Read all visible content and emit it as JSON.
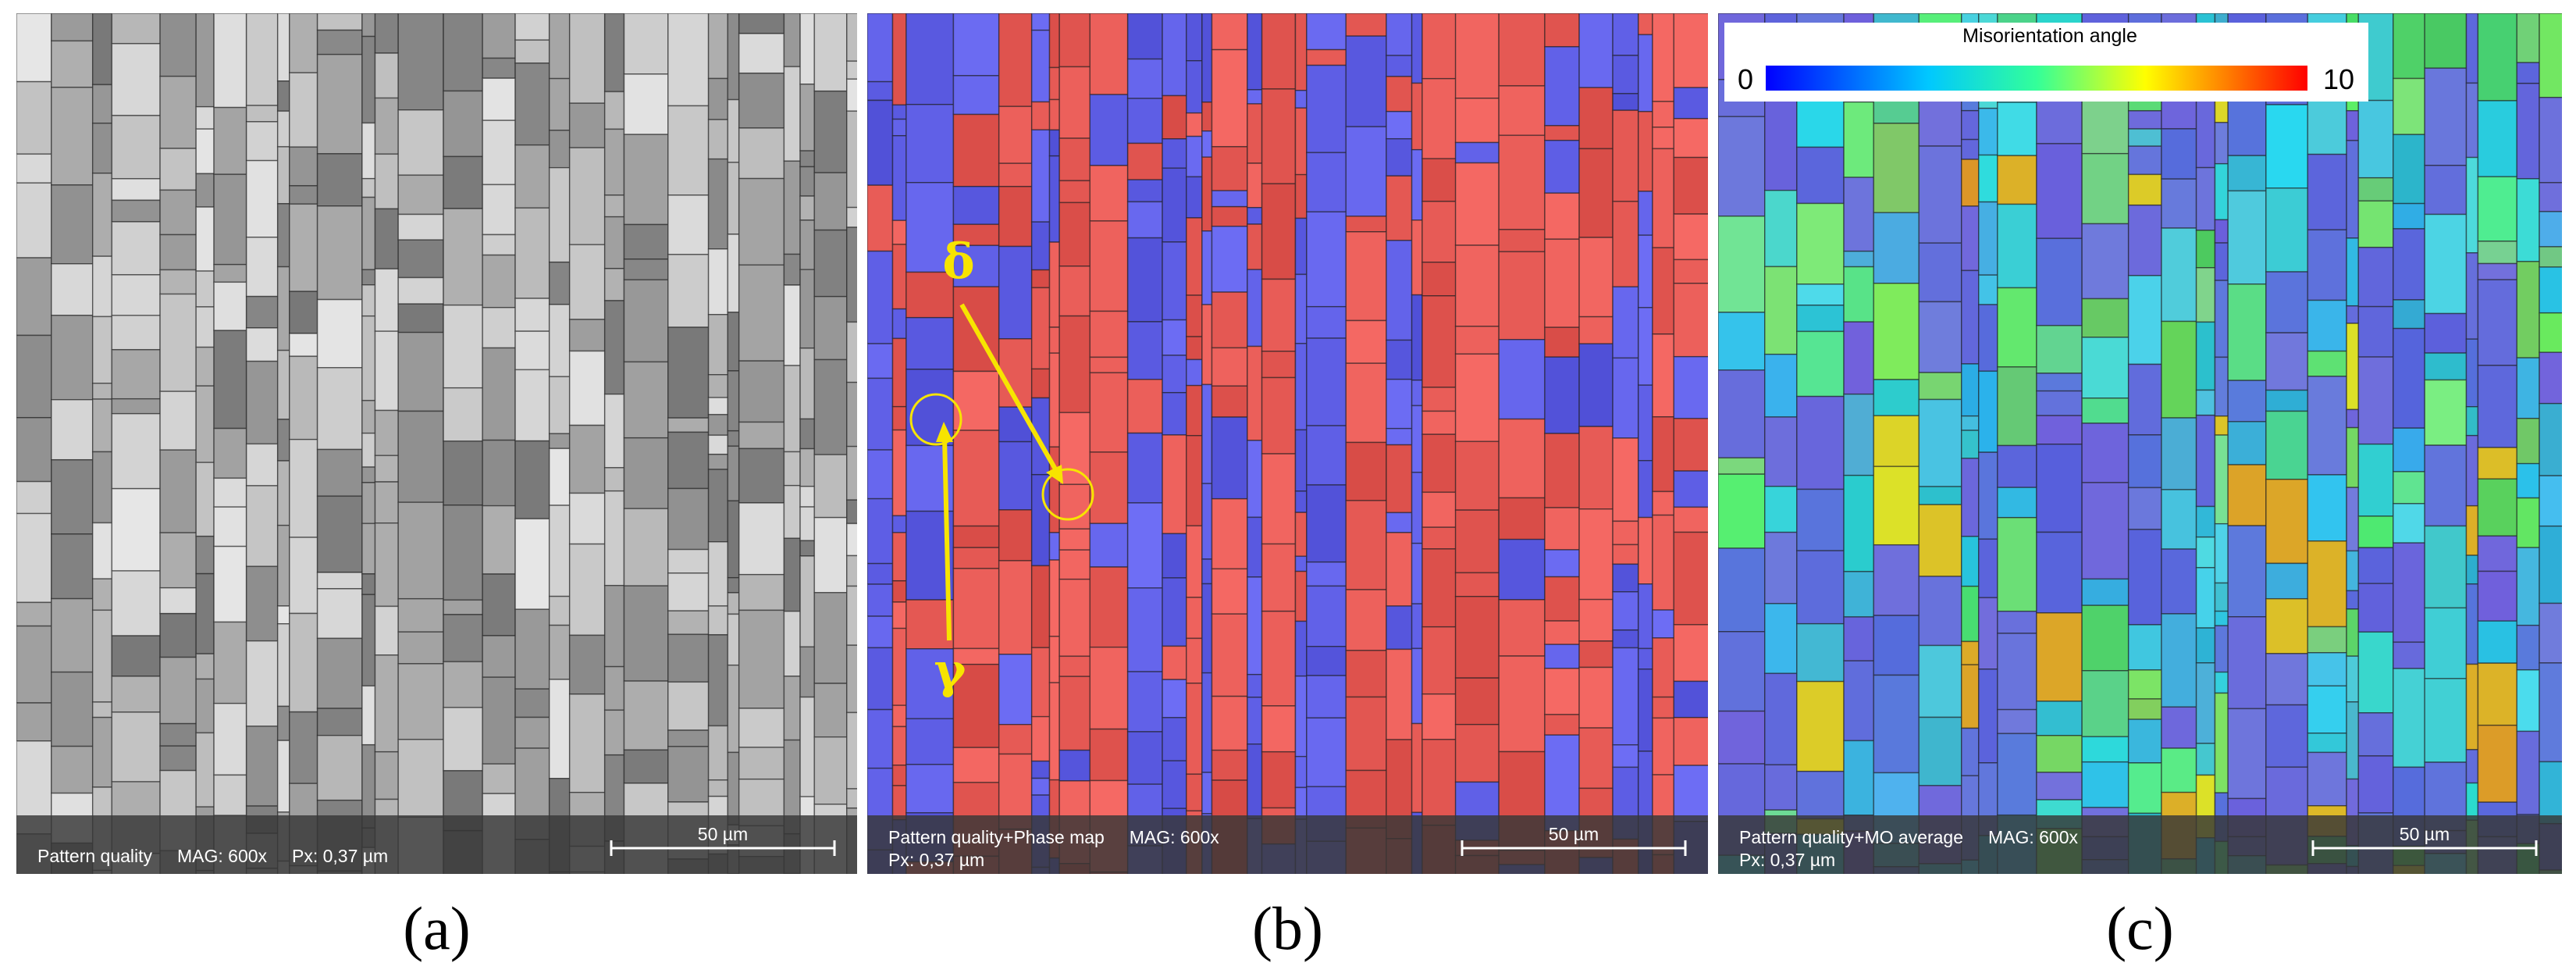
{
  "panels": [
    {
      "label": "(a)",
      "info": [
        "Pattern quality     MAG: 600x     Px: 0,37 µm"
      ],
      "scale_bar": "50 µm"
    },
    {
      "label": "(b)",
      "info": [
        "Pattern quality+Phase map     MAG: 600x",
        "Px: 0,37 µm"
      ],
      "scale_bar": "50 µm",
      "annotations": [
        "δ",
        "γ"
      ]
    },
    {
      "label": "(c)",
      "info": [
        "Pattern quality+MO average     MAG: 600x",
        "Px: 0,37 µm"
      ],
      "scale_bar": "50 µm",
      "colorbar": {
        "title": "Misorientation angle",
        "min": 0,
        "max": 10
      }
    }
  ]
}
